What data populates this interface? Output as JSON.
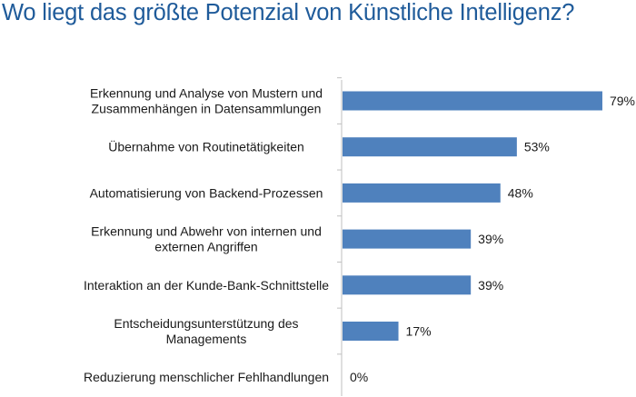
{
  "title": "Wo liegt das größte Potenzial von Künstliche Intelligenz?",
  "colors": {
    "title": "#1f5b9a",
    "bar": "#4f81bd",
    "axis": "#bfbfbf",
    "text": "#1a1a1a"
  },
  "chart_data": {
    "type": "bar",
    "orientation": "horizontal",
    "categories": [
      "Erkennung und Analyse von Mustern und Zusammenhängen in Datensammlungen",
      "Übernahme von Routinetätigkeiten",
      "Automatisierung von Backend-Prozessen",
      "Erkennung und Abwehr von internen und externen Angriffen",
      "Interaktion an der Kunde-Bank-Schnittstelle",
      "Entscheidungsunterstützung des Managements",
      "Reduzierung menschlicher Fehlhandlungen"
    ],
    "category_lines": [
      [
        "Erkennung und Analyse von Mustern und",
        "Zusammenhängen in Datensammlungen"
      ],
      [
        "Übernahme von Routinetätigkeiten"
      ],
      [
        "Automatisierung von Backend-Prozessen"
      ],
      [
        "Erkennung und Abwehr von internen und",
        "externen Angriffen"
      ],
      [
        "Interaktion an der Kunde-Bank-Schnittstelle"
      ],
      [
        "Entscheidungsunterstützung des",
        "Managements"
      ],
      [
        "Reduzierung menschlicher Fehlhandlungen"
      ]
    ],
    "values": [
      79,
      53,
      48,
      39,
      39,
      17,
      0
    ],
    "value_labels": [
      "79%",
      "53%",
      "48%",
      "39%",
      "39%",
      "17%",
      "0%"
    ],
    "xlim": [
      0,
      100
    ],
    "grid": false,
    "legend": "none"
  }
}
